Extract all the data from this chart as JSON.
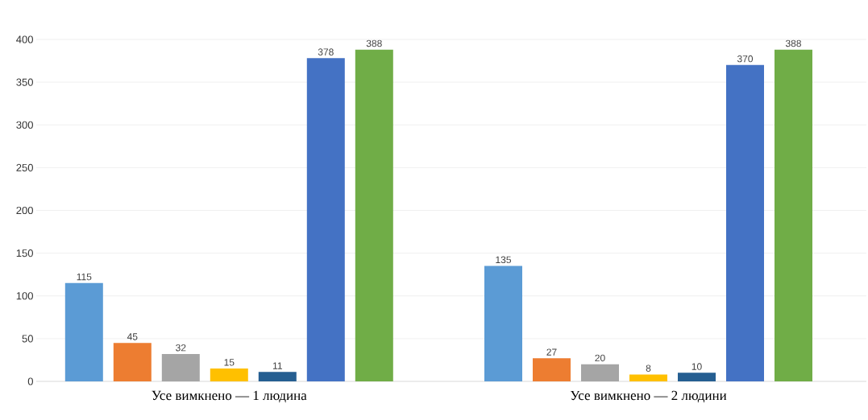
{
  "chart_data": {
    "type": "bar",
    "categories": [
      "Усе вимкнено — 1 людина",
      "Усе вимкнено — 2 людини"
    ],
    "series": [
      {
        "color": "#5b9bd5",
        "values": [
          115,
          135
        ]
      },
      {
        "color": "#ed7d31",
        "values": [
          45,
          27
        ]
      },
      {
        "color": "#a5a5a5",
        "values": [
          32,
          20
        ]
      },
      {
        "color": "#ffc000",
        "values": [
          15,
          8
        ]
      },
      {
        "color": "#255e91",
        "values": [
          11,
          10
        ]
      },
      {
        "color": "#4472c4",
        "values": [
          378,
          370
        ]
      },
      {
        "color": "#70ad47",
        "values": [
          388,
          388
        ]
      }
    ],
    "ylim": [
      0,
      400
    ],
    "yticks": [
      0,
      50,
      100,
      150,
      200,
      250,
      300,
      350,
      400
    ],
    "grid": "y",
    "data_labels": true
  }
}
